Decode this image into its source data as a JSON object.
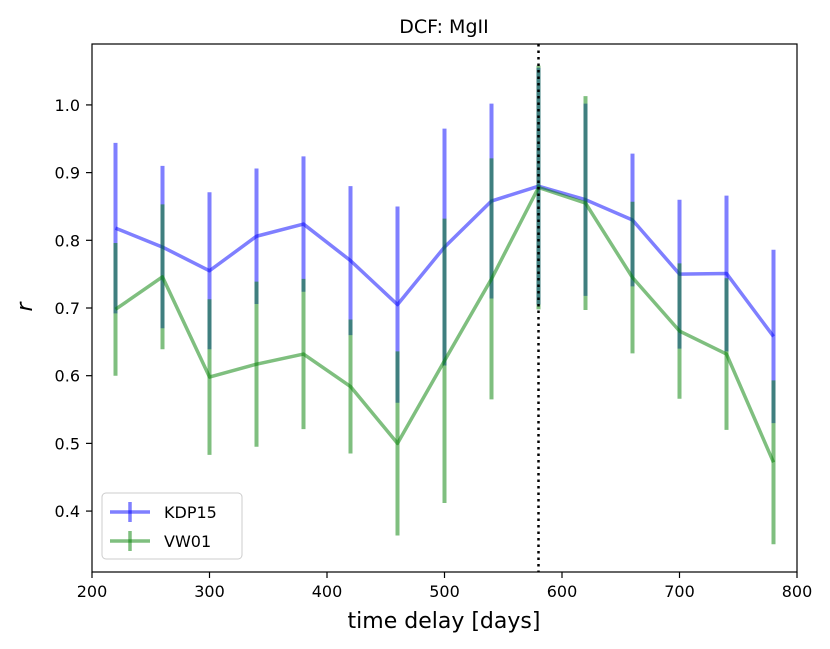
{
  "chart_data": {
    "type": "line",
    "title": "DCF: MgII",
    "xlabel": "time delay [days]",
    "ylabel": "r",
    "xlim": [
      200,
      800
    ],
    "ylim": [
      0.31,
      1.09
    ],
    "xticks": [
      200,
      300,
      400,
      500,
      600,
      700,
      800
    ],
    "xtick_labels": [
      "200",
      "300",
      "400",
      "500",
      "600",
      "700",
      "800"
    ],
    "yticks": [
      0.4,
      0.5,
      0.6,
      0.7,
      0.8,
      0.9,
      1.0
    ],
    "ytick_labels": [
      "0.4",
      "0.5",
      "0.6",
      "0.7",
      "0.8",
      "0.9",
      "1.0"
    ],
    "grid": false,
    "legend_position": "lower-left",
    "vline": {
      "x": 580,
      "style": "dotted",
      "color": "#000000"
    },
    "x": [
      220,
      260,
      300,
      340,
      380,
      420,
      460,
      500,
      540,
      580,
      620,
      660,
      700,
      740,
      780
    ],
    "series": [
      {
        "name": "KDP15",
        "color": "#0000ff",
        "values": [
          0.818,
          0.79,
          0.755,
          0.806,
          0.824,
          0.77,
          0.705,
          0.79,
          0.858,
          0.88,
          0.86,
          0.83,
          0.75,
          0.751,
          0.658
        ],
        "err": [
          0.126,
          0.12,
          0.116,
          0.1,
          0.1,
          0.11,
          0.145,
          0.175,
          0.144,
          0.175,
          0.142,
          0.098,
          0.11,
          0.115,
          0.128
        ]
      },
      {
        "name": "VW01",
        "color": "#008000",
        "values": [
          0.698,
          0.746,
          0.598,
          0.617,
          0.632,
          0.584,
          0.5,
          0.622,
          0.743,
          0.878,
          0.855,
          0.745,
          0.666,
          0.632,
          0.472
        ],
        "err": [
          0.098,
          0.107,
          0.115,
          0.122,
          0.111,
          0.099,
          0.136,
          0.21,
          0.178,
          0.18,
          0.158,
          0.112,
          0.1,
          0.112,
          0.121
        ]
      }
    ]
  }
}
